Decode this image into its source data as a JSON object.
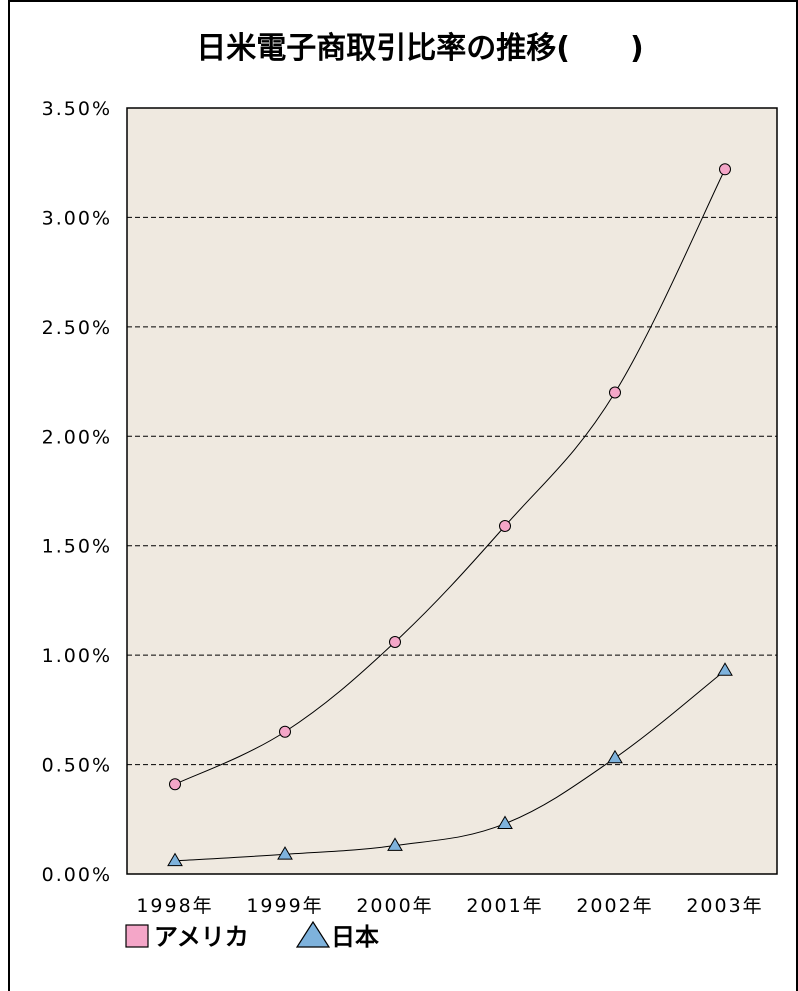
{
  "chart_data": {
    "type": "line",
    "title": "日米電子商取引比率の推移(　　)",
    "categories": [
      "1998年",
      "1999年",
      "2000年",
      "2001年",
      "2002年",
      "2003年"
    ],
    "ylim": [
      0,
      3.5
    ],
    "y_ticks": [
      "0.00%",
      "0.50%",
      "1.00%",
      "1.50%",
      "2.00%",
      "2.50%",
      "3.00%",
      "3.50%"
    ],
    "y_tick_values": [
      0,
      0.5,
      1.0,
      1.5,
      2.0,
      2.5,
      3.0,
      3.5
    ],
    "grid": "horizontal dashed",
    "legend_position": "bottom-left",
    "plot_background": "#EFE9E0",
    "series": [
      {
        "name": "アメリカ",
        "marker": "circle",
        "color": "#F4A6C8",
        "values": [
          0.41,
          0.65,
          1.06,
          1.59,
          2.2,
          3.22
        ]
      },
      {
        "name": "日本",
        "marker": "triangle",
        "color": "#7EB2DC",
        "values": [
          0.06,
          0.09,
          0.13,
          0.23,
          0.53,
          0.93
        ]
      }
    ]
  }
}
